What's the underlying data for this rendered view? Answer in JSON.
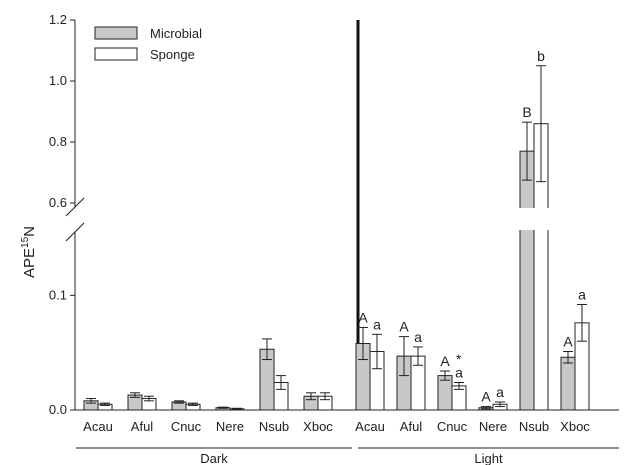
{
  "chart_data": {
    "type": "bar",
    "ylabel": "APE",
    "ylabel_sup": "15",
    "ylabel_end": "N",
    "axis_break": {
      "lower": [
        0,
        0.15
      ],
      "upper": [
        0.6,
        1.2
      ]
    },
    "lower_ticks": [
      "0.0",
      "0.1"
    ],
    "upper_ticks": [
      "0.6",
      "0.8",
      "1.0",
      "1.2"
    ],
    "categories": [
      "Acau",
      "Aful",
      "Cnuc",
      "Nere",
      "Nsub",
      "Xboc"
    ],
    "legend": [
      {
        "label": "Microbial",
        "color": "#c8c8c8"
      },
      {
        "label": "Sponge",
        "color": "#ffffff"
      }
    ],
    "groups": [
      {
        "label": "Dark",
        "series": [
          {
            "name": "Microbial",
            "values": [
              0.008,
              0.013,
              0.007,
              0.002,
              0.053,
              0.012
            ],
            "errors": [
              0.002,
              0.002,
              0.001,
              0.0005,
              0.009,
              0.003
            ],
            "marks": [
              "",
              "",
              "",
              "",
              "",
              ""
            ]
          },
          {
            "name": "Sponge",
            "values": [
              0.005,
              0.01,
              0.005,
              0.001,
              0.024,
              0.012
            ],
            "errors": [
              0.001,
              0.002,
              0.001,
              0.0005,
              0.006,
              0.003
            ],
            "marks": [
              "",
              "",
              "",
              "",
              "",
              ""
            ]
          }
        ]
      },
      {
        "label": "Light",
        "series": [
          {
            "name": "Microbial",
            "values": [
              0.058,
              0.047,
              0.03,
              0.002,
              0.77,
              0.046
            ],
            "errors": [
              0.014,
              0.017,
              0.004,
              0.001,
              0.095,
              0.005
            ],
            "marks": [
              "A",
              "A",
              "A",
              "A",
              "B",
              "A"
            ]
          },
          {
            "name": "Sponge",
            "values": [
              0.051,
              0.047,
              0.021,
              0.005,
              0.86,
              0.076
            ],
            "errors": [
              0.015,
              0.008,
              0.003,
              0.002,
              0.19,
              0.016
            ],
            "marks": [
              "a",
              "a",
              "a",
              "a",
              "b",
              "a"
            ]
          }
        ]
      }
    ],
    "annotations": [
      {
        "text": "*",
        "group": "Light",
        "category": "Cnuc"
      }
    ]
  }
}
